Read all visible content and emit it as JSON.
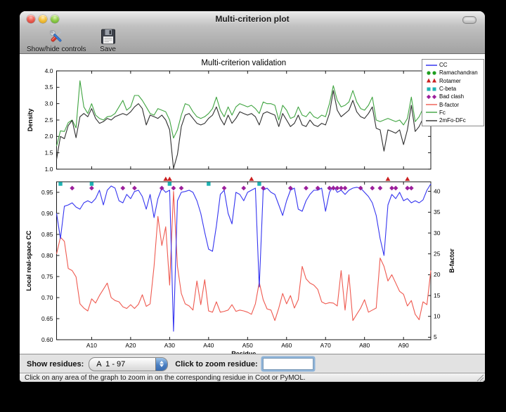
{
  "window": {
    "title": "Multi-criterion plot"
  },
  "toolbar": {
    "buttons": [
      {
        "label": "Show/hide controls",
        "icon": "tools-icon"
      },
      {
        "label": "Save",
        "icon": "save-icon"
      }
    ]
  },
  "legend": {
    "entries": [
      {
        "label": "CC",
        "sample": "line",
        "color": "#3535f0"
      },
      {
        "label": "Ramachandran",
        "sample": "circle",
        "color": "#1e9e1e"
      },
      {
        "label": "Rotamer",
        "sample": "triangle",
        "color": "#cc2020"
      },
      {
        "label": "C-beta",
        "sample": "square",
        "color": "#1fb3b3"
      },
      {
        "label": "Bad clash",
        "sample": "diamond",
        "color": "#9c1f9c"
      },
      {
        "label": "B-factor",
        "sample": "line",
        "color": "#ef5a50"
      },
      {
        "label": "Fc",
        "sample": "line",
        "color": "#3fa440"
      },
      {
        "label": "2mFo-DFc",
        "sample": "line",
        "color": "#2e2e2e"
      }
    ]
  },
  "chart_data": [
    {
      "type": "line",
      "title": "Multi-criterion validation",
      "ylabel": "Density",
      "ylim": [
        1.0,
        4.0
      ],
      "x_range": [
        1,
        97
      ],
      "yticks": [
        {
          "value": 1.0,
          "label": "1.0"
        },
        {
          "value": 1.5,
          "label": "1.5"
        },
        {
          "value": 2.0,
          "label": "2.0"
        },
        {
          "value": 2.5,
          "label": "2.5"
        },
        {
          "value": 3.0,
          "label": "3.0"
        },
        {
          "value": 3.5,
          "label": "3.5"
        },
        {
          "value": 4.0,
          "label": "4.0"
        }
      ],
      "series": [
        {
          "name": "Fc",
          "color": "#3fa440",
          "values": [
            1.7,
            2.17,
            2.15,
            2.42,
            2.5,
            2.26,
            3.7,
            2.9,
            2.7,
            3.0,
            2.65,
            2.55,
            2.5,
            2.6,
            2.62,
            2.7,
            2.9,
            3.1,
            2.8,
            2.9,
            3.25,
            3.25,
            3.1,
            2.9,
            2.7,
            2.65,
            2.85,
            2.8,
            2.75,
            2.5,
            1.95,
            2.2,
            2.65,
            3.0,
            2.95,
            2.75,
            2.6,
            2.55,
            2.6,
            2.7,
            2.85,
            3.2,
            2.8,
            2.6,
            2.9,
            2.65,
            2.9,
            3.0,
            2.95,
            2.9,
            2.95,
            2.85,
            2.7,
            3.05,
            3.0,
            3.0,
            2.95,
            2.5,
            2.95,
            2.8,
            2.55,
            2.6,
            2.9,
            2.65,
            2.6,
            2.75,
            2.6,
            2.55,
            2.65,
            2.6,
            3.0,
            3.55,
            3.1,
            2.9,
            2.95,
            3.05,
            3.4,
            3.05,
            2.85,
            2.8,
            2.95,
            3.2,
            2.5,
            2.45,
            2.5,
            2.55,
            2.5,
            2.45,
            2.5,
            2.35,
            2.55,
            3.2,
            2.45,
            2.6,
            2.85,
            2.75,
            3.6
          ]
        },
        {
          "name": "2mFo-DFc",
          "color": "#2e2e2e",
          "values": [
            1.3,
            2.0,
            1.93,
            2.33,
            2.49,
            1.96,
            2.6,
            2.7,
            2.6,
            2.85,
            2.55,
            2.4,
            2.45,
            2.55,
            2.5,
            2.6,
            2.65,
            2.7,
            2.65,
            2.75,
            2.9,
            3.0,
            2.85,
            2.35,
            2.65,
            2.6,
            2.55,
            2.65,
            2.5,
            2.2,
            1.02,
            1.45,
            2.3,
            2.65,
            2.7,
            2.55,
            2.4,
            2.35,
            2.4,
            2.55,
            2.65,
            2.9,
            2.55,
            2.35,
            2.65,
            2.4,
            2.55,
            2.75,
            2.7,
            2.65,
            2.7,
            2.6,
            2.35,
            2.7,
            2.75,
            2.7,
            2.65,
            2.3,
            2.7,
            2.5,
            2.3,
            2.4,
            2.65,
            2.35,
            2.3,
            2.5,
            2.35,
            2.3,
            2.4,
            2.35,
            2.7,
            3.4,
            2.8,
            2.6,
            2.7,
            2.8,
            3.1,
            2.75,
            2.6,
            2.55,
            2.7,
            2.9,
            2.25,
            2.2,
            1.55,
            2.2,
            2.15,
            2.1,
            2.2,
            1.75,
            2.2,
            2.95,
            2.15,
            2.3,
            2.55,
            2.45,
            3.1
          ]
        }
      ]
    },
    {
      "type": "line",
      "xlabel": "Residue",
      "ylabel_left": "Local real-space CC",
      "ylabel_right": "B-factor",
      "ylim_left": [
        0.6,
        0.975
      ],
      "ylim_right": [
        4.4,
        42.3
      ],
      "x_range": [
        1,
        97
      ],
      "xticks": [
        {
          "r": 10,
          "label": "A10"
        },
        {
          "r": 20,
          "label": "A20"
        },
        {
          "r": 30,
          "label": "A30"
        },
        {
          "r": 40,
          "label": "A40"
        },
        {
          "r": 50,
          "label": "A50"
        },
        {
          "r": 60,
          "label": "A60"
        },
        {
          "r": 70,
          "label": "A70"
        },
        {
          "r": 80,
          "label": "A80"
        },
        {
          "r": 90,
          "label": "A90"
        }
      ],
      "yticks_left": [
        {
          "value": 0.6,
          "label": "0.60"
        },
        {
          "value": 0.65,
          "label": "0.65"
        },
        {
          "value": 0.7,
          "label": "0.70"
        },
        {
          "value": 0.75,
          "label": "0.75"
        },
        {
          "value": 0.8,
          "label": "0.80"
        },
        {
          "value": 0.85,
          "label": "0.85"
        },
        {
          "value": 0.9,
          "label": "0.90"
        },
        {
          "value": 0.95,
          "label": "0.95"
        }
      ],
      "yticks_right": [
        {
          "value": 5,
          "label": "5"
        },
        {
          "value": 10,
          "label": "10"
        },
        {
          "value": 15,
          "label": "15"
        },
        {
          "value": 20,
          "label": "20"
        },
        {
          "value": 25,
          "label": "25"
        },
        {
          "value": 30,
          "label": "30"
        },
        {
          "value": 35,
          "label": "35"
        },
        {
          "value": 40,
          "label": "40"
        }
      ],
      "series": [
        {
          "name": "CC",
          "axis": "left",
          "color": "#3535f0",
          "values": [
            0.9,
            0.84,
            0.917,
            0.92,
            0.925,
            0.915,
            0.91,
            0.925,
            0.93,
            0.925,
            0.935,
            0.955,
            0.92,
            0.955,
            0.965,
            0.96,
            0.93,
            0.925,
            0.945,
            0.935,
            0.952,
            0.955,
            0.94,
            0.91,
            0.945,
            0.89,
            0.935,
            0.96,
            0.95,
            0.955,
            0.62,
            0.93,
            0.95,
            0.952,
            0.955,
            0.95,
            0.93,
            0.9,
            0.855,
            0.815,
            0.81,
            0.87,
            0.945,
            0.955,
            0.9,
            0.875,
            0.95,
            0.945,
            0.93,
            0.95,
            0.955,
            0.96,
            0.725,
            0.955,
            0.96,
            0.95,
            0.945,
            0.92,
            0.895,
            0.93,
            0.955,
            0.96,
            0.91,
            0.905,
            0.93,
            0.945,
            0.955,
            0.955,
            0.96,
            0.905,
            0.95,
            0.965,
            0.95,
            0.955,
            0.945,
            0.955,
            0.96,
            0.962,
            0.96,
            0.95,
            0.94,
            0.925,
            0.895,
            0.84,
            0.8,
            0.92,
            0.945,
            0.935,
            0.95,
            0.93,
            0.935,
            0.925,
            0.93,
            0.925,
            0.932,
            0.955,
            0.97
          ]
        },
        {
          "name": "B-factor",
          "axis": "right",
          "color": "#ef5a50",
          "values": [
            25.0,
            29.0,
            28.0,
            21.5,
            21.0,
            19.5,
            13.0,
            12.0,
            11.3,
            14.2,
            13.2,
            15.0,
            16.5,
            18.0,
            14.5,
            13.8,
            13.5,
            12.3,
            11.9,
            12.8,
            11.9,
            12.9,
            15.2,
            12.4,
            13.0,
            22.0,
            34.0,
            27.0,
            31.5,
            17.5,
            40.0,
            22.0,
            15.5,
            13.0,
            12.5,
            11.5,
            18.5,
            12.8,
            18.8,
            11.3,
            11.0,
            13.5,
            11.0,
            11.2,
            11.5,
            12.8,
            11.2,
            11.5,
            11.3,
            11.0,
            10.5,
            13.0,
            18.2,
            14.0,
            11.8,
            11.5,
            9.0,
            12.0,
            15.5,
            13.0,
            15.0,
            12.0,
            14.0,
            22.0,
            19.0,
            18.0,
            17.5,
            16.5,
            13.5,
            13.0,
            13.3,
            13.2,
            12.5,
            21.0,
            11.5,
            20.0,
            9.0,
            10.5,
            12.0,
            14.0,
            11.0,
            11.5,
            12.0,
            24.0,
            22.0,
            18.5,
            20.0,
            18.0,
            16.0,
            15.3,
            12.5,
            13.8,
            10.5,
            9.2,
            13.5,
            12.8,
            21.0
          ]
        }
      ],
      "markers": [
        {
          "name": "Ramachandran",
          "shape": "circle",
          "color": "#1e9e1e",
          "residues": []
        },
        {
          "name": "Rotamer",
          "shape": "triangle",
          "color": "#cc2020",
          "residues": [
            29,
            30,
            51,
            86,
            91
          ]
        },
        {
          "name": "C-beta",
          "shape": "square",
          "color": "#1fb3b3",
          "residues": [
            2,
            10,
            30,
            40,
            53
          ]
        },
        {
          "name": "Bad clash",
          "shape": "diamond",
          "color": "#9c1f9c",
          "residues": [
            5,
            10,
            18,
            21,
            28,
            31,
            33,
            44,
            49,
            54,
            61,
            65,
            68,
            71,
            72,
            73,
            74,
            75,
            79,
            82,
            84,
            87,
            88,
            91,
            92
          ]
        }
      ]
    }
  ],
  "controls": {
    "show_residues_label": "Show residues:",
    "residue_range_value": "A  1 - 97",
    "zoom_residue_label": "Click to zoom residue:",
    "zoom_input_value": ""
  },
  "status_bar": {
    "message": "Click on any area of the graph to zoom in on the corresponding residue in Coot or PyMOL."
  }
}
